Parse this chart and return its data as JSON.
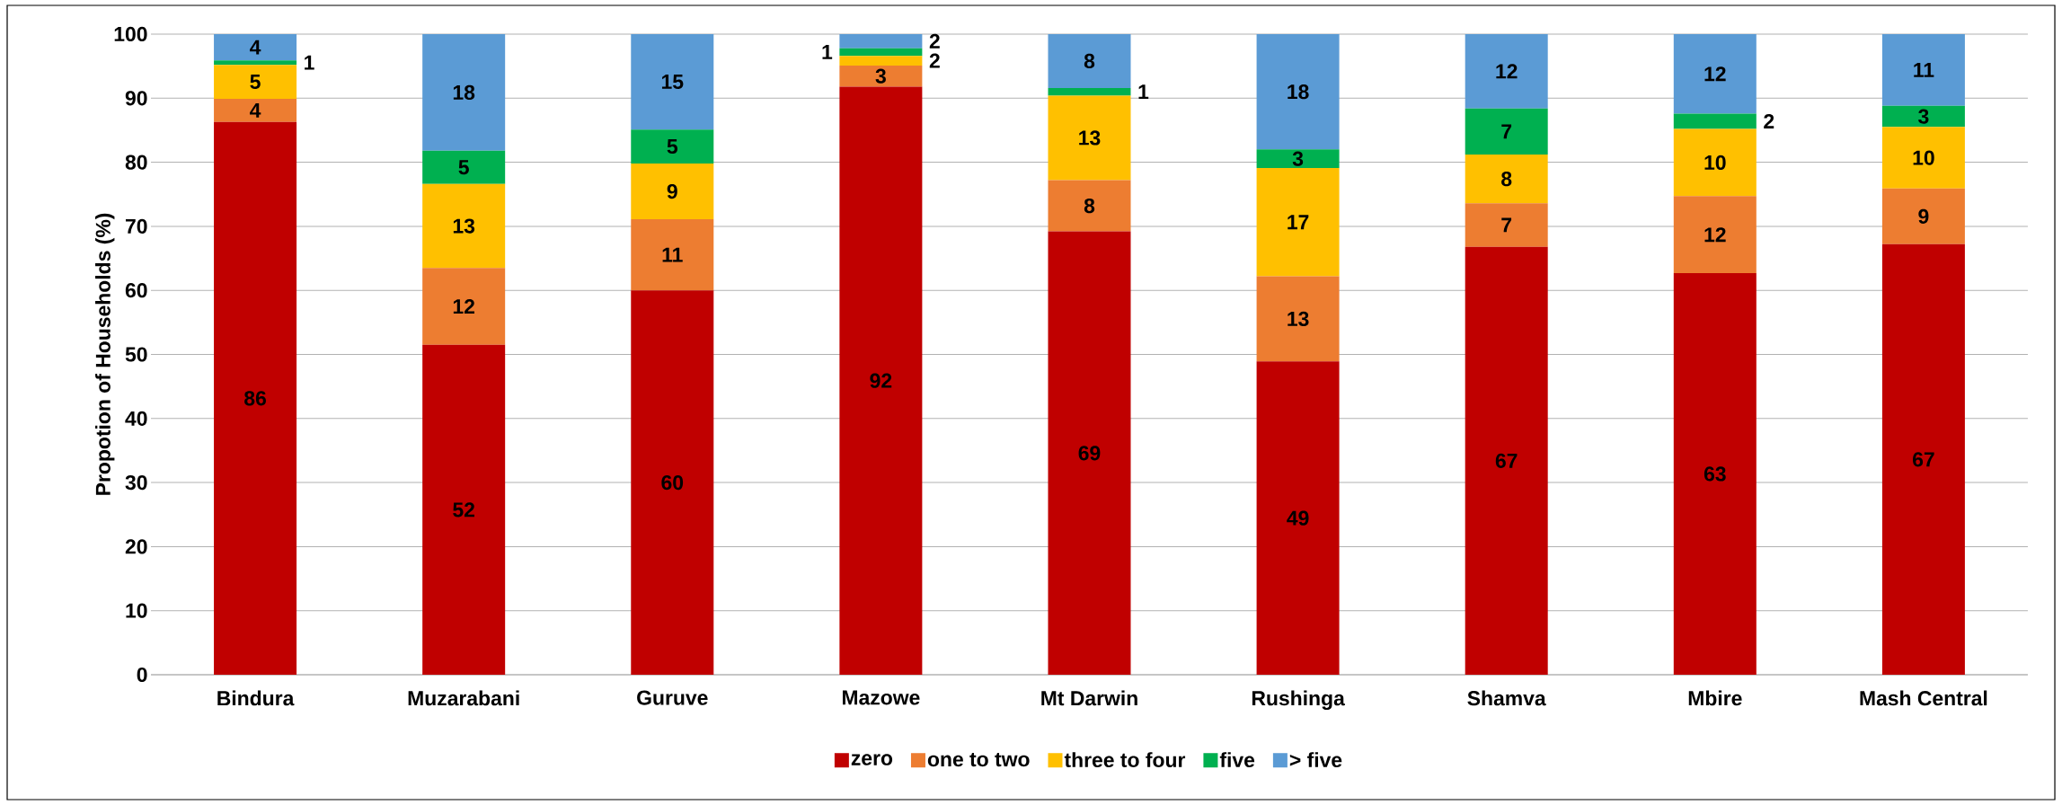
{
  "chart_data": {
    "type": "bar",
    "stacked": true,
    "ylabel": "Propotion of Households (%)",
    "categories": [
      "Bindura",
      "Muzarabani",
      "Guruve",
      "Mazowe",
      "Mt Darwin",
      "Rushinga",
      "Shamva",
      "Mbire",
      "Mash Central"
    ],
    "series": [
      {
        "name": "zero",
        "color": "#c00000",
        "values": [
          86.3,
          51.5,
          60.0,
          91.8,
          69.2,
          48.9,
          66.8,
          62.7,
          67.2
        ],
        "value_labels": [
          "86",
          "52",
          "60",
          "92",
          "69",
          "49",
          "67",
          "63",
          "67"
        ]
      },
      {
        "name": "one to two",
        "color": "#ed7d31",
        "values": [
          3.6,
          12.0,
          11.1,
          3.3,
          8.0,
          13.3,
          6.8,
          12.0,
          8.7
        ],
        "value_labels": [
          "4",
          "12",
          "11",
          "3",
          "8",
          "13",
          "7",
          "12",
          "9"
        ]
      },
      {
        "name": "three to four",
        "color": "#ffc000",
        "values": [
          5.3,
          13.1,
          8.7,
          1.5,
          13.2,
          16.9,
          7.6,
          10.5,
          9.6
        ],
        "value_labels": [
          "5",
          "13",
          "9",
          "2",
          "13",
          "17",
          "8",
          "10",
          "10"
        ]
      },
      {
        "name": "five",
        "color": "#00b050",
        "values": [
          0.7,
          5.2,
          5.3,
          1.2,
          1.2,
          2.9,
          7.2,
          2.4,
          3.3
        ],
        "value_labels": [
          "1",
          "5",
          "5",
          "1",
          "1",
          "3",
          "7",
          "2",
          "3"
        ]
      },
      {
        "name": "> five",
        "color": "#5b9bd5",
        "values": [
          4.1,
          18.2,
          14.9,
          2.2,
          8.4,
          18.0,
          11.6,
          12.4,
          11.2
        ],
        "value_labels": [
          "4",
          "18",
          "15",
          "2",
          "8",
          "18",
          "12",
          "12",
          "11"
        ]
      }
    ],
    "ylim": [
      0,
      100
    ],
    "yticks": [
      0,
      10,
      20,
      30,
      40,
      50,
      60,
      70,
      80,
      90,
      100
    ],
    "grid": "y",
    "legend": "bottom"
  }
}
